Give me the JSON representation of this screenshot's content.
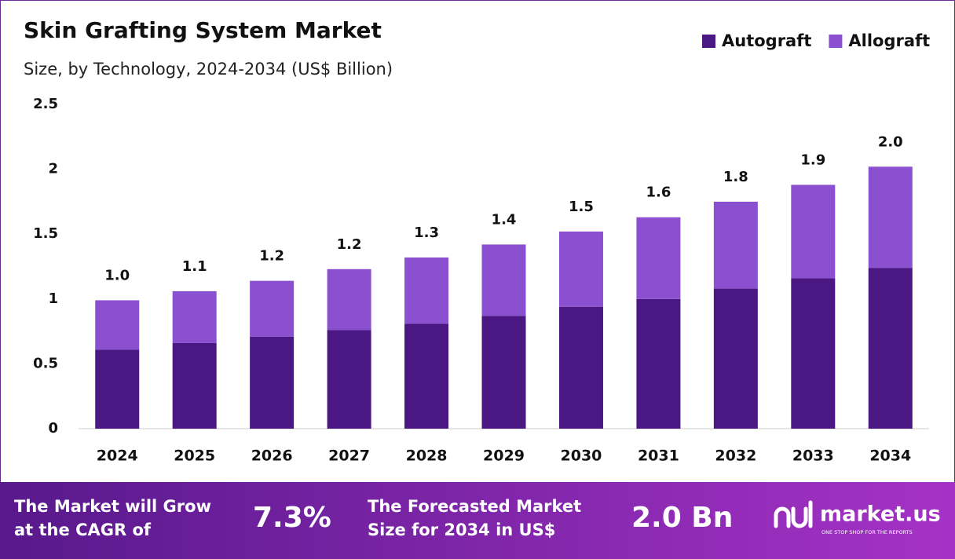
{
  "chart_data": {
    "type": "stacked-bar",
    "title": "Skin Grafting System Market",
    "subtitle": "Size, by Technology, 2024-2034 (US$ Billion)",
    "categories": [
      "2024",
      "2025",
      "2026",
      "2027",
      "2028",
      "2029",
      "2030",
      "2031",
      "2032",
      "2033",
      "2034"
    ],
    "series": [
      {
        "name": "Autograft",
        "color": "#4b1782",
        "values": [
          0.61,
          0.66,
          0.71,
          0.76,
          0.81,
          0.87,
          0.94,
          1.0,
          1.08,
          1.16,
          1.24
        ]
      },
      {
        "name": "Allograft",
        "color": "#8b50cf",
        "values": [
          0.38,
          0.4,
          0.43,
          0.47,
          0.51,
          0.55,
          0.58,
          0.63,
          0.67,
          0.72,
          0.78
        ]
      }
    ],
    "total_labels": [
      "1.0",
      "1.1",
      "1.2",
      "1.2",
      "1.3",
      "1.4",
      "1.5",
      "1.6",
      "1.8",
      "1.9",
      "2.0"
    ],
    "ylim": [
      0,
      2.5
    ],
    "yticks": [
      0,
      0.5,
      1,
      1.5,
      2,
      2.5
    ],
    "grid": false,
    "legend": "top-right"
  },
  "footer": {
    "cagr_text": [
      "The Market will Grow",
      "at the CAGR of"
    ],
    "cagr_value": "7.3%",
    "forecast_text": [
      "The Forecasted Market",
      "Size for 2034 in US$"
    ],
    "forecast_value": "2.0 Bn",
    "brand": "market.us",
    "tagline": "ONE STOP SHOP FOR THE REPORTS"
  }
}
